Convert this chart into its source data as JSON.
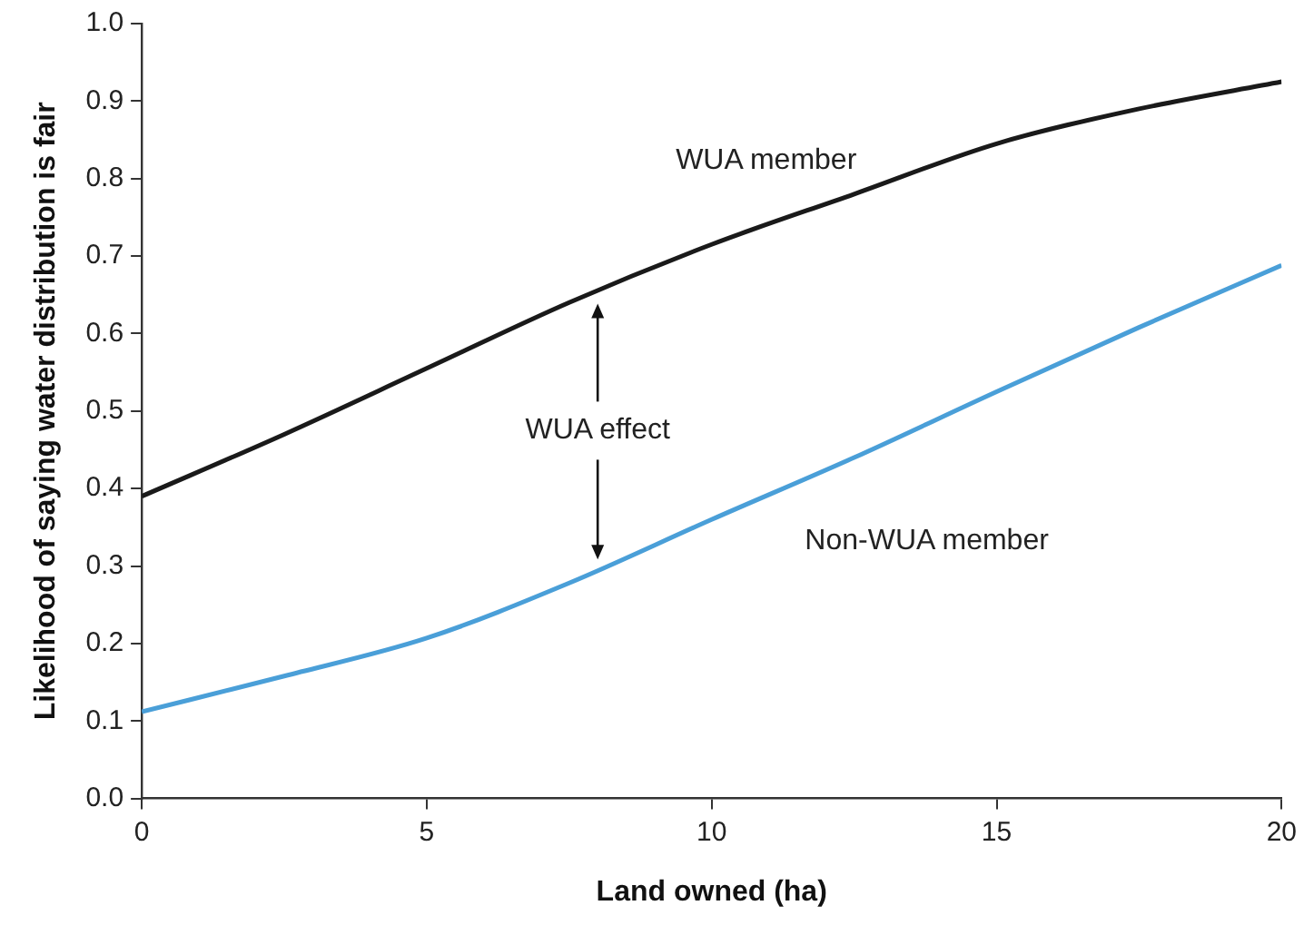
{
  "chart_data": {
    "type": "line",
    "xlabel": "Land owned (ha)",
    "ylabel": "Likelihood of saying water distribution is fair",
    "x": [
      0,
      2.5,
      5,
      7.5,
      10,
      12.5,
      15,
      17.5,
      20
    ],
    "series": [
      {
        "name": "WUA member",
        "color": "#1a1a1a",
        "values": [
          0.39,
          0.47,
          0.555,
          0.64,
          0.715,
          0.78,
          0.845,
          0.89,
          0.925
        ]
      },
      {
        "name": "Non-WUA member",
        "color": "#4a9fd8",
        "values": [
          0.112,
          0.158,
          0.207,
          0.278,
          0.36,
          0.44,
          0.525,
          0.608,
          0.688
        ]
      }
    ],
    "xlim": [
      0,
      20
    ],
    "xticks": [
      0,
      5,
      10,
      15,
      20
    ],
    "ylim": [
      0,
      1
    ],
    "yticks": [
      {
        "value": 0,
        "label": "0.0"
      },
      0.1,
      0.2,
      0.3,
      0.4,
      0.5,
      0.6,
      0.7,
      0.8,
      0.9,
      {
        "value": 1,
        "label": "1.0"
      }
    ],
    "grid": false,
    "legend": false,
    "marker": "none",
    "line_style": "solid",
    "annotations": [
      "WUA effect"
    ]
  }
}
